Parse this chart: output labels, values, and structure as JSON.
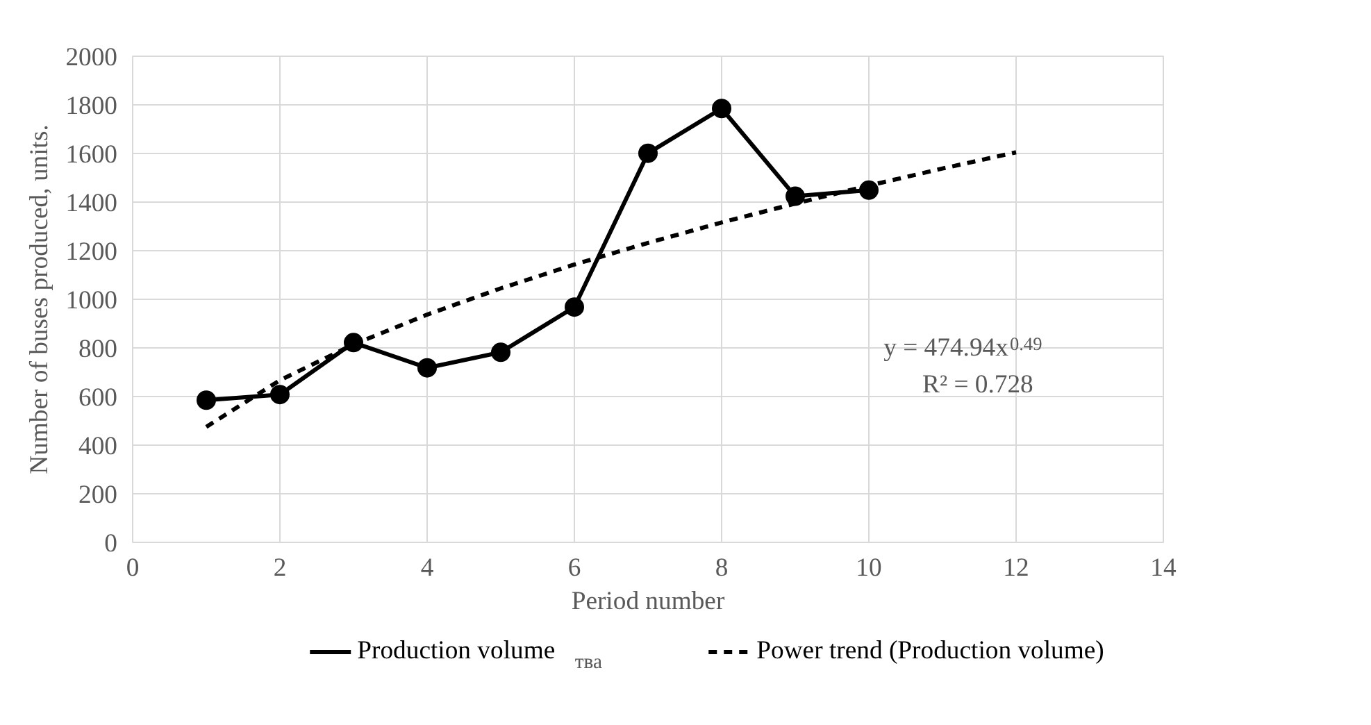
{
  "chart_data": {
    "type": "line",
    "xlabel": "Period number",
    "ylabel": "Number of buses produced, units.",
    "x": [
      1,
      2,
      3,
      4,
      5,
      6,
      7,
      8,
      9,
      10
    ],
    "series": [
      {
        "name": "Production volume",
        "color": "#000000",
        "marker": "circle",
        "line_style": "solid",
        "values": [
          585,
          608,
          822,
          718,
          782,
          968,
          1601,
          1785,
          1424,
          1449
        ]
      },
      {
        "name": "Power trend (Production volume)",
        "color": "#000000",
        "marker": "none",
        "line_style": "dashed",
        "x": [
          1,
          2,
          3,
          4,
          5,
          6,
          7,
          8,
          9,
          10,
          11,
          12
        ],
        "values": [
          475,
          667,
          814,
          937,
          1045,
          1143,
          1232,
          1316,
          1394,
          1468,
          1538,
          1605
        ]
      }
    ],
    "xlim": [
      0,
      14
    ],
    "xticks": [
      0,
      2,
      4,
      6,
      8,
      10,
      12,
      14
    ],
    "ylim": [
      0,
      2000
    ],
    "yticks": [
      0,
      200,
      400,
      600,
      800,
      1000,
      1200,
      1400,
      1600,
      1800,
      2000
    ],
    "grid": true,
    "legend": "bottom",
    "annotations": [
      "y = 474.94x$^{0.49}$",
      "R² = 0.728",
      "тва"
    ]
  }
}
